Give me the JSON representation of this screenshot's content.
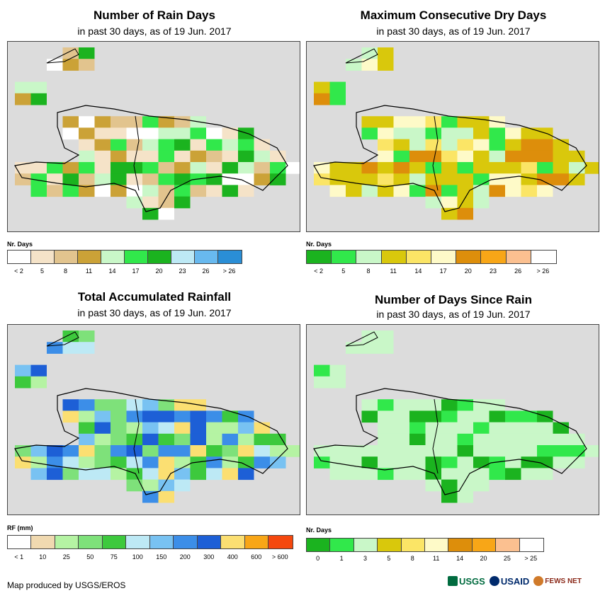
{
  "panels": [
    {
      "title": "Number of Rain Days",
      "subtitle": "in past 30 days, as of 19 Jun. 2017",
      "legend_title": "Nr. Days",
      "legend_colors": [
        "#ffffff",
        "#f5e3c8",
        "#e2c48e",
        "#cba237",
        "#c9f7c8",
        "#31e84b",
        "#1bb31f",
        "#bde9f5",
        "#68b9ef",
        "#2a8ed6"
      ],
      "legend_labels": [
        "< 2",
        "5",
        "8",
        "11",
        "14",
        "17",
        "20",
        "23",
        "26",
        "> 26"
      ]
    },
    {
      "title": "Maximum Consecutive Dry Days",
      "subtitle": "in past 30 days, as of 19 Jun. 2017",
      "legend_title": "Nr. Days",
      "legend_colors": [
        "#1bb31f",
        "#31e84b",
        "#c9f7c8",
        "#d9c80c",
        "#fbe566",
        "#fefac8",
        "#dd8e0b",
        "#f8a617",
        "#fbc090",
        "#ffffff"
      ],
      "legend_labels": [
        "< 2",
        "5",
        "8",
        "11",
        "14",
        "17",
        "20",
        "23",
        "26",
        "> 26"
      ]
    },
    {
      "title": "Total Accumulated Rainfall",
      "subtitle": "in past 30 days, as of 19 Jun. 2017",
      "legend_title": "RF (mm)",
      "legend_colors": [
        "#ffffff",
        "#f0d9b0",
        "#b5f3a3",
        "#7ee17a",
        "#3dc93d",
        "#bde9f5",
        "#78c2f2",
        "#3c8ee8",
        "#1d5fd6",
        "#fbdf72",
        "#f8a617",
        "#f5480e"
      ],
      "legend_labels": [
        "< 1",
        "10",
        "25",
        "50",
        "75",
        "100",
        "150",
        "200",
        "300",
        "400",
        "600",
        "> 600"
      ]
    },
    {
      "title": "Number of Days Since Rain",
      "subtitle": "in past 30 days, as of 19 Jun. 2017",
      "legend_title": "Nr. Days",
      "legend_colors": [
        "#1bb31f",
        "#31e84b",
        "#c9f7c8",
        "#d9c80c",
        "#fbe566",
        "#fefac8",
        "#dd8e0b",
        "#f8a617",
        "#fbc090",
        "#ffffff"
      ],
      "legend_labels": [
        "0",
        "1",
        "3",
        "5",
        "8",
        "11",
        "14",
        "20",
        "25",
        "> 25"
      ]
    }
  ],
  "credit": "Map produced by USGS/EROS",
  "logos": [
    "USGS",
    "USAID",
    "FEWS NET"
  ],
  "colors": {
    "map_background": "#dcdcdc",
    "border": "#000000"
  }
}
